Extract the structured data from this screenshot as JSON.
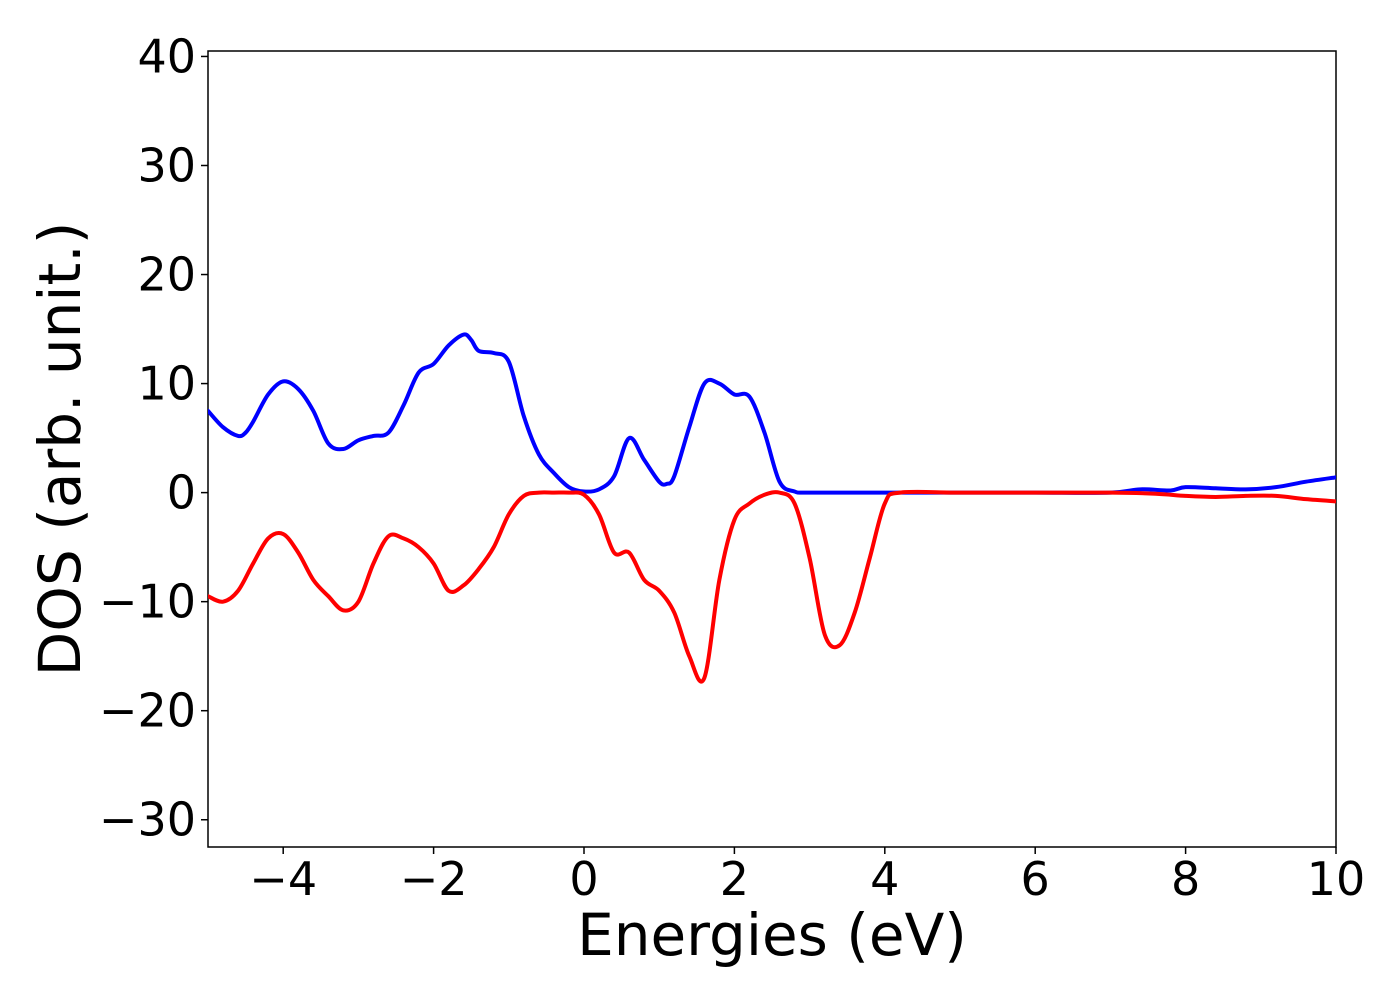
{
  "chart_data": {
    "type": "line",
    "title": "",
    "xlabel": "Energies (eV)",
    "ylabel": "DOS (arb. unit.)",
    "xlim": [
      -5,
      10
    ],
    "ylim": [
      -32.5,
      40.5
    ],
    "x_ticks": [
      -4,
      -2,
      0,
      2,
      4,
      6,
      8,
      10
    ],
    "x_tick_labels": [
      "−4",
      "−2",
      "0",
      "2",
      "4",
      "6",
      "8",
      "10"
    ],
    "y_ticks": [
      40,
      30,
      20,
      10,
      0,
      -10,
      -20,
      -30
    ],
    "y_tick_labels": [
      "40",
      "30",
      "20",
      "10",
      "0",
      "−10",
      "−20",
      "−30"
    ],
    "grid": false,
    "legend": "none",
    "series": [
      {
        "color": "#0000ff",
        "x": [
          -5.0,
          -4.8,
          -4.6,
          -4.5,
          -4.4,
          -4.2,
          -4.0,
          -3.8,
          -3.6,
          -3.4,
          -3.2,
          -3.0,
          -2.8,
          -2.6,
          -2.4,
          -2.2,
          -2.0,
          -1.8,
          -1.6,
          -1.5,
          -1.4,
          -1.2,
          -1.0,
          -0.8,
          -0.6,
          -0.4,
          -0.2,
          0.0,
          0.2,
          0.4,
          0.6,
          0.8,
          1.0,
          1.1,
          1.2,
          1.4,
          1.6,
          1.8,
          2.0,
          2.2,
          2.4,
          2.6,
          2.8,
          3.0,
          4.0,
          5.0,
          6.0,
          7.0,
          7.4,
          7.8,
          8.0,
          8.4,
          8.8,
          9.2,
          9.6,
          10.0
        ],
        "y": [
          7.5,
          6.0,
          5.2,
          5.5,
          6.5,
          9.0,
          10.2,
          9.5,
          7.5,
          4.5,
          4.0,
          4.8,
          5.2,
          5.5,
          8.0,
          11.0,
          11.8,
          13.5,
          14.5,
          14.0,
          13.0,
          12.8,
          12.0,
          7.0,
          3.5,
          1.8,
          0.5,
          0.1,
          0.3,
          1.5,
          5.0,
          3.0,
          1.0,
          0.8,
          1.5,
          6.0,
          10.0,
          10.0,
          9.0,
          8.8,
          5.5,
          1.0,
          0.1,
          0.0,
          0.0,
          0.0,
          0.0,
          0.0,
          0.3,
          0.2,
          0.5,
          0.4,
          0.3,
          0.5,
          1.0,
          1.4
        ]
      },
      {
        "color": "#ff0000",
        "x": [
          -5.0,
          -4.8,
          -4.6,
          -4.4,
          -4.2,
          -4.0,
          -3.8,
          -3.6,
          -3.4,
          -3.2,
          -3.0,
          -2.8,
          -2.6,
          -2.4,
          -2.2,
          -2.0,
          -1.8,
          -1.6,
          -1.4,
          -1.2,
          -1.0,
          -0.8,
          -0.6,
          -0.4,
          -0.2,
          0.0,
          0.2,
          0.4,
          0.6,
          0.8,
          1.0,
          1.2,
          1.4,
          1.6,
          1.8,
          2.0,
          2.2,
          2.4,
          2.6,
          2.8,
          3.0,
          3.2,
          3.4,
          3.6,
          3.8,
          4.0,
          4.2,
          5.0,
          6.0,
          7.0,
          7.6,
          8.0,
          8.4,
          8.8,
          9.2,
          9.6,
          10.0
        ],
        "y": [
          -9.5,
          -10.0,
          -9.0,
          -6.5,
          -4.2,
          -3.8,
          -5.5,
          -8.0,
          -9.5,
          -10.8,
          -10.0,
          -6.5,
          -4.0,
          -4.2,
          -5.0,
          -6.5,
          -9.0,
          -8.5,
          -7.0,
          -5.0,
          -2.0,
          -0.3,
          0.0,
          0.0,
          0.0,
          -0.2,
          -2.0,
          -5.5,
          -5.5,
          -8.0,
          -9.0,
          -11.0,
          -15.0,
          -17.0,
          -8.0,
          -2.5,
          -1.0,
          -0.2,
          0.0,
          -1.0,
          -6.0,
          -13.0,
          -14.0,
          -11.0,
          -6.0,
          -1.0,
          0.0,
          0.0,
          0.0,
          0.0,
          -0.1,
          -0.3,
          -0.4,
          -0.3,
          -0.3,
          -0.6,
          -0.8
        ]
      }
    ]
  }
}
